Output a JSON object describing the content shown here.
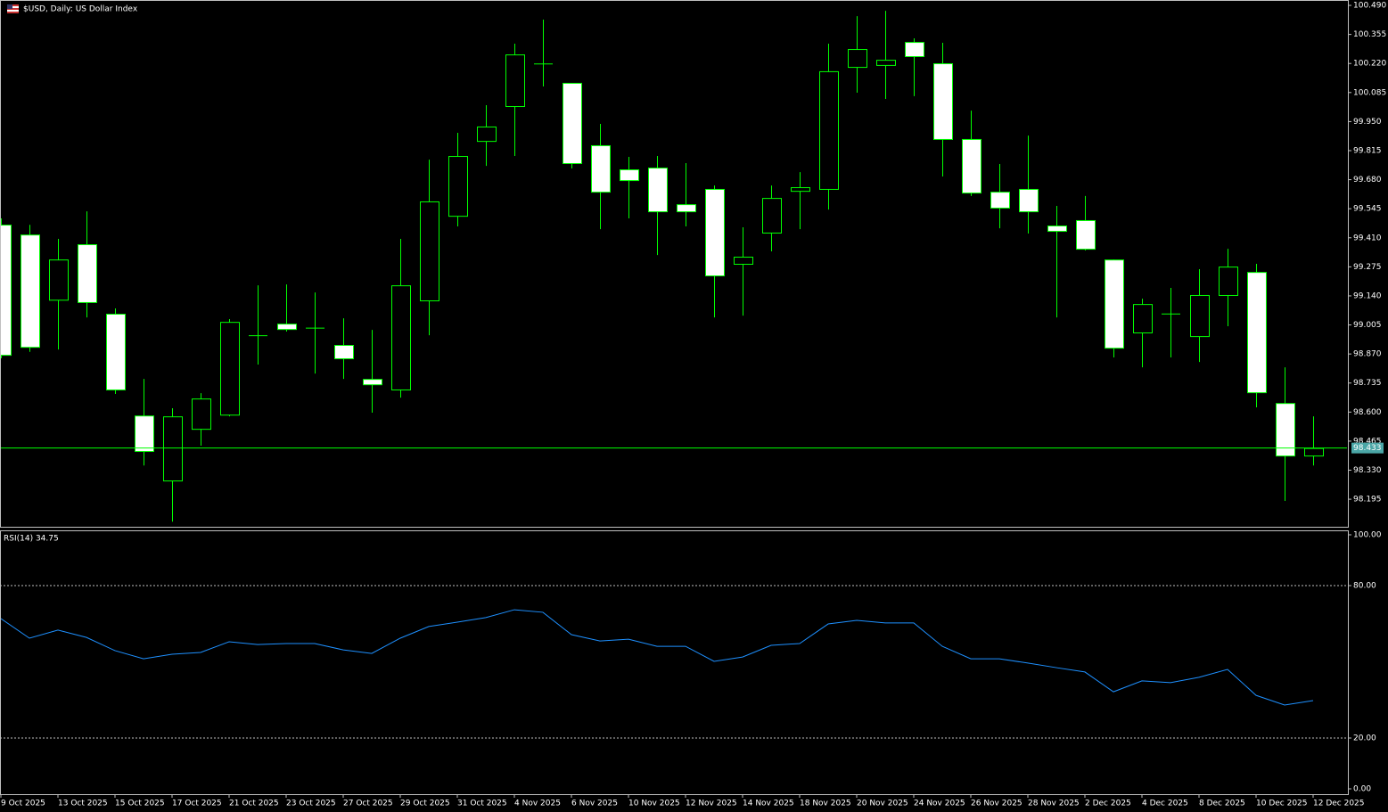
{
  "chart_data": [
    {
      "type": "candlestick",
      "title": "$USD, Daily:  US Dollar Index",
      "categories": [
        "9 Oct 2025",
        null,
        "13 Oct 2025",
        null,
        "15 Oct 2025",
        null,
        "17 Oct 2025",
        null,
        "21 Oct 2025",
        null,
        "23 Oct 2025",
        null,
        "27 Oct 2025",
        null,
        "29 Oct 2025",
        null,
        "31 Oct 2025",
        null,
        "4 Nov 2025",
        null,
        "6 Nov 2025",
        null,
        "10 Nov 2025",
        null,
        "12 Nov 2025",
        null,
        "14 Nov 2025",
        null,
        "18 Nov 2025",
        null,
        "20 Nov 2025",
        null,
        "24 Nov 2025",
        null,
        "26 Nov 2025",
        null,
        "28 Nov 2025",
        null,
        "2 Dec 2025",
        null,
        "4 Dec 2025",
        null,
        "8 Dec 2025",
        null,
        "10 Dec 2025",
        null,
        "12 Dec 2025"
      ],
      "open": [
        99.471,
        99.425,
        99.122,
        99.38,
        99.057,
        98.584,
        98.282,
        98.522,
        98.588,
        98.95,
        99.011,
        98.992,
        98.912,
        98.754,
        98.705,
        99.119,
        99.512,
        99.86,
        100.022,
        100.217,
        100.13,
        99.84,
        99.728,
        99.736,
        99.566,
        99.637,
        99.289,
        99.434,
        99.628,
        99.637,
        100.204,
        100.213,
        100.32,
        100.221,
        99.869,
        99.624,
        99.637,
        99.467,
        99.492,
        99.309,
        98.97,
        99.057,
        98.953,
        99.144,
        99.251,
        98.642,
        98.398
      ],
      "high": [
        99.5,
        99.47,
        99.405,
        99.533,
        99.082,
        98.754,
        98.618,
        98.688,
        99.032,
        99.189,
        99.193,
        99.156,
        99.036,
        98.982,
        99.405,
        99.773,
        99.898,
        100.026,
        100.312,
        100.424,
        100.13,
        99.939,
        99.786,
        99.79,
        99.757,
        99.653,
        99.459,
        99.653,
        99.715,
        100.312,
        100.44,
        100.465,
        100.337,
        100.316,
        100.001,
        99.753,
        99.885,
        99.558,
        99.604,
        99.309,
        99.127,
        99.177,
        99.264,
        99.359,
        99.289,
        98.808,
        98.58
      ],
      "low": [
        98.85,
        98.88,
        98.891,
        99.04,
        98.684,
        98.352,
        98.091,
        98.444,
        98.58,
        98.821,
        98.974,
        98.779,
        98.754,
        98.597,
        98.667,
        98.957,
        99.463,
        99.744,
        99.79,
        100.113,
        99.732,
        99.45,
        99.5,
        99.33,
        99.463,
        99.04,
        99.048,
        99.347,
        99.45,
        99.541,
        100.084,
        100.055,
        100.068,
        99.695,
        99.604,
        99.454,
        99.43,
        99.04,
        99.351,
        98.854,
        98.808,
        98.854,
        98.833,
        98.999,
        98.622,
        98.187,
        98.352
      ],
      "close": [
        98.866,
        98.903,
        99.309,
        99.111,
        98.705,
        98.419,
        98.58,
        98.663,
        99.019,
        98.955,
        98.986,
        98.99,
        98.85,
        98.729,
        99.189,
        99.579,
        99.79,
        99.927,
        100.262,
        100.218,
        99.757,
        99.624,
        99.678,
        99.533,
        99.533,
        99.235,
        99.322,
        99.595,
        99.645,
        100.184,
        100.287,
        100.237,
        100.254,
        99.869,
        99.62,
        99.55,
        99.533,
        99.442,
        99.359,
        98.899,
        99.102,
        99.056,
        99.144,
        99.276,
        98.692,
        98.398,
        98.433
      ],
      "ylim": [
        98.067,
        100.515
      ],
      "yticks": [
        {
          "value": 100.49,
          "label": "100.490"
        },
        100.355,
        {
          "value": 100.22,
          "label": "100.220"
        },
        100.085,
        {
          "value": 99.95,
          "label": "99.950"
        },
        99.815,
        {
          "value": 99.68,
          "label": "99.680"
        },
        99.545,
        {
          "value": 99.41,
          "label": "99.410"
        },
        99.275,
        {
          "value": 99.14,
          "label": "99.140"
        },
        99.005,
        {
          "value": 98.87,
          "label": "98.870"
        },
        98.735,
        {
          "value": 98.6,
          "label": "98.600"
        },
        98.465,
        {
          "value": 98.33,
          "label": "98.330"
        },
        98.195
      ],
      "last_price": 98.433,
      "up_color": "#000000",
      "down_color": "#ffffff",
      "line_color": "#00ff00"
    },
    {
      "type": "line",
      "title": "RSI(14) 34.75",
      "values": [
        67.0,
        59.3,
        62.5,
        59.6,
        54.4,
        51.2,
        53.0,
        53.7,
        57.9,
        56.8,
        57.2,
        57.2,
        54.7,
        53.3,
        59.3,
        63.9,
        65.6,
        67.4,
        70.5,
        69.5,
        60.7,
        58.2,
        58.9,
        56.1,
        56.1,
        50.2,
        51.9,
        56.5,
        57.2,
        64.9,
        66.3,
        65.3,
        65.3,
        56.1,
        51.2,
        51.2,
        49.5,
        47.7,
        46.0,
        38.2,
        42.5,
        41.8,
        43.9,
        47.0,
        36.8,
        33.0,
        34.75
      ],
      "color": "#1e90ff",
      "ylim": [
        -2.1,
        101.4
      ],
      "yticks": [
        {
          "value": 0,
          "label": "0.00"
        },
        {
          "value": 20,
          "label": "20.00"
        },
        {
          "value": 80,
          "label": "80.00"
        },
        {
          "value": 100,
          "label": "100.00"
        }
      ],
      "levels": [
        20,
        80
      ]
    }
  ]
}
